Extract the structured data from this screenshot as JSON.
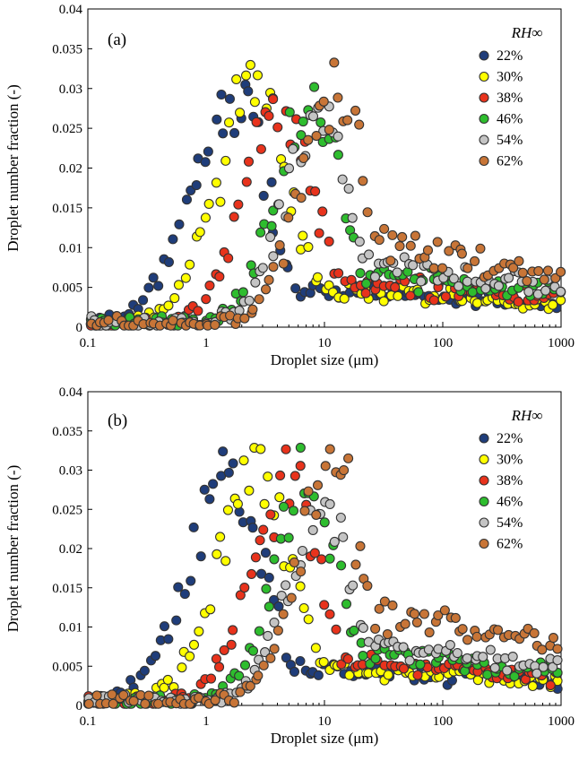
{
  "chart_data": [
    {
      "panel_label": "(a)",
      "type": "scatter",
      "xlabel": "Droplet size (μm)",
      "ylabel": "Droplet number fraction (-)",
      "xscale": "log",
      "xlim": [
        0.1,
        1000
      ],
      "ylim": [
        0,
        0.04
      ],
      "xticks": [
        0.1,
        1,
        10,
        100,
        1000
      ],
      "xtick_labels": [
        "0.1",
        "1",
        "10",
        "100",
        "1000"
      ],
      "yticks": [
        0,
        0.005,
        0.01,
        0.015,
        0.02,
        0.025,
        0.03,
        0.035,
        0.04
      ],
      "ytick_labels": [
        "0",
        "0.005",
        "0.01",
        "0.015",
        "0.02",
        "0.025",
        "0.03",
        "0.035",
        "0.04"
      ],
      "legend_title": "RH∞",
      "legend_position": "top-right",
      "series": [
        {
          "name": "22%",
          "color": "#1f3d7a",
          "peak_size": 1.7,
          "peak_value": 0.0295,
          "sigma": 0.35,
          "tail": 0.004
        },
        {
          "name": "30%",
          "color": "#ffff00",
          "peak_size": 2.7,
          "peak_value": 0.031,
          "sigma": 0.33,
          "tail": 0.004
        },
        {
          "name": "38%",
          "color": "#e8331c",
          "peak_size": 4.5,
          "peak_value": 0.0295,
          "sigma": 0.32,
          "tail": 0.005
        },
        {
          "name": "46%",
          "color": "#2ebd2e",
          "peak_size": 8.0,
          "peak_value": 0.0298,
          "sigma": 0.3,
          "tail": 0.006
        },
        {
          "name": "54%",
          "color": "#c4c4c4",
          "peak_size": 9.5,
          "peak_value": 0.028,
          "sigma": 0.3,
          "tail": 0.007
        },
        {
          "name": "62%",
          "color": "#c87537",
          "peak_size": 13.0,
          "peak_value": 0.031,
          "sigma": 0.3,
          "tail": 0.0095
        }
      ]
    },
    {
      "panel_label": "(b)",
      "type": "scatter",
      "xlabel": "Droplet size (μm)",
      "ylabel": "Droplet number fraction (-)",
      "xscale": "log",
      "xlim": [
        0.1,
        1000
      ],
      "ylim": [
        0,
        0.04
      ],
      "xticks": [
        0.1,
        1,
        10,
        100,
        1000
      ],
      "xtick_labels": [
        "0.1",
        "1",
        "10",
        "100",
        "1000"
      ],
      "yticks": [
        0,
        0.005,
        0.01,
        0.015,
        0.02,
        0.025,
        0.03,
        0.035,
        0.04
      ],
      "ytick_labels": [
        "0",
        "0.005",
        "0.01",
        "0.015",
        "0.02",
        "0.025",
        "0.03",
        "0.035",
        "0.04"
      ],
      "legend_title": "RH∞",
      "legend_position": "top-right",
      "series": [
        {
          "name": "22%",
          "color": "#1f3d7a",
          "peak_size": 1.6,
          "peak_value": 0.029,
          "sigma": 0.36,
          "tail": 0.004
        },
        {
          "name": "30%",
          "color": "#ffff00",
          "peak_size": 2.8,
          "peak_value": 0.03,
          "sigma": 0.34,
          "tail": 0.004
        },
        {
          "name": "38%",
          "color": "#e8331c",
          "peak_size": 5.0,
          "peak_value": 0.029,
          "sigma": 0.32,
          "tail": 0.005
        },
        {
          "name": "46%",
          "color": "#2ebd2e",
          "peak_size": 7.5,
          "peak_value": 0.0295,
          "sigma": 0.3,
          "tail": 0.006
        },
        {
          "name": "54%",
          "color": "#c4c4c4",
          "peak_size": 10.0,
          "peak_value": 0.027,
          "sigma": 0.3,
          "tail": 0.007
        },
        {
          "name": "62%",
          "color": "#c87537",
          "peak_size": 12.0,
          "peak_value": 0.031,
          "sigma": 0.3,
          "tail": 0.0105
        }
      ]
    }
  ]
}
